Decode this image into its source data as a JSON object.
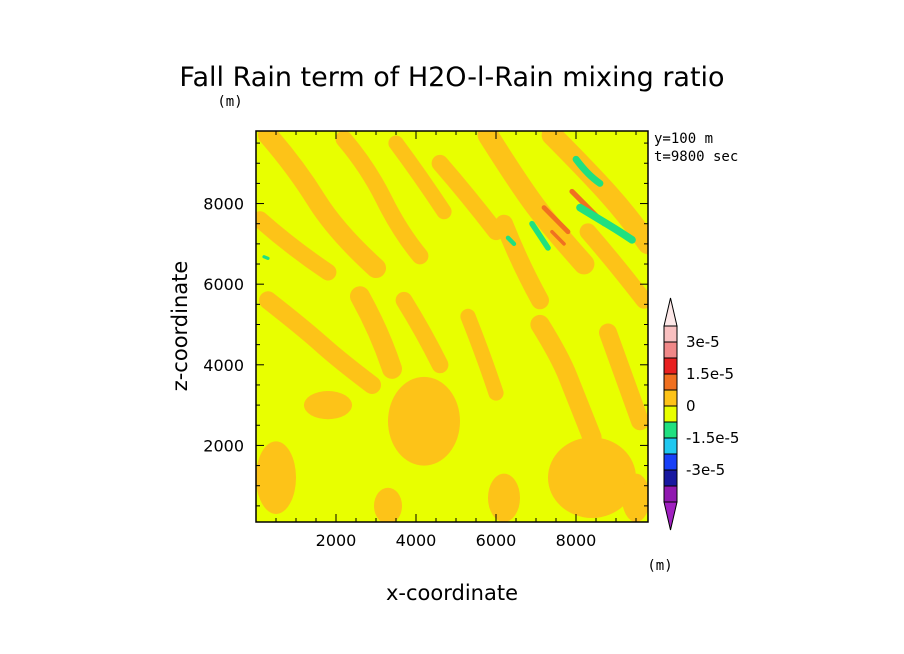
{
  "chart_data": {
    "type": "heatmap",
    "title": "Fall Rain term of H2O-l-Rain mixing ratio",
    "subtitle": "(m)",
    "xlabel": "x-coordinate",
    "ylabel": "z-coordinate",
    "xlim": [
      0,
      9800
    ],
    "ylim": [
      100,
      9800
    ],
    "x_ticks": [
      "2000",
      "4000",
      "6000",
      "8000"
    ],
    "y_ticks": [
      "2000",
      "4000",
      "6000",
      "8000"
    ],
    "annotations": [
      "y=100 m",
      "t=9800 sec"
    ],
    "colorbar": {
      "unit": "(m)",
      "tick_labels": [
        "3e-5",
        "1.5e-5",
        "0",
        "-1.5e-5",
        "-3e-5"
      ],
      "tick_values": [
        3e-05,
        1.5e-05,
        0,
        -1.5e-05,
        -3e-05
      ],
      "levels": [
        {
          "from": 3e-05,
          "to": 3.75e-05,
          "color": "#f9c0c0"
        },
        {
          "from": 2.25e-05,
          "to": 3e-05,
          "color": "#f08888"
        },
        {
          "from": 1.5e-05,
          "to": 2.25e-05,
          "color": "#e82020"
        },
        {
          "from": 7.5e-06,
          "to": 1.5e-05,
          "color": "#f07020"
        },
        {
          "from": 0,
          "to": 7.5e-06,
          "color": "#fdc318"
        },
        {
          "from": -7.5e-06,
          "to": 0,
          "color": "#e8ff00"
        },
        {
          "from": -1.5e-05,
          "to": -7.5e-06,
          "color": "#20e080"
        },
        {
          "from": -2.25e-05,
          "to": -1.5e-05,
          "color": "#20c8f0"
        },
        {
          "from": -3e-05,
          "to": -2.25e-05,
          "color": "#1840f8"
        },
        {
          "from": -3.75e-05,
          "to": -3e-05,
          "color": "#1818a0"
        },
        {
          "from": -4.5e-05,
          "to": -3.75e-05,
          "color": "#9018b0"
        }
      ],
      "top_extend_color": "#fde8e8",
      "bottom_extend_color": "#a020c0"
    },
    "background_color": "#e8ff00",
    "features": [
      {
        "level": "0.0 to 0.75e-5",
        "color": "#fdc318",
        "shape": "streak",
        "points": [
          [
            300,
            9700
          ],
          [
            1000,
            8900
          ],
          [
            2000,
            7300
          ],
          [
            3000,
            6400
          ]
        ],
        "width": 500
      },
      {
        "level": "0.0 to 0.75e-5",
        "color": "#fdc318",
        "shape": "streak",
        "points": [
          [
            2200,
            9600
          ],
          [
            2800,
            8900
          ],
          [
            3600,
            7300
          ],
          [
            4100,
            6700
          ]
        ],
        "width": 420
      },
      {
        "level": "0.0 to 0.75e-5",
        "color": "#fdc318",
        "shape": "streak",
        "points": [
          [
            3500,
            9500
          ],
          [
            4100,
            8700
          ],
          [
            4700,
            7800
          ]
        ],
        "width": 380
      },
      {
        "level": "0.0 to 0.75e-5",
        "color": "#fdc318",
        "shape": "streak",
        "points": [
          [
            4600,
            9000
          ],
          [
            5300,
            8200
          ],
          [
            6000,
            7300
          ]
        ],
        "width": 420
      },
      {
        "level": "0.0 to 0.75e-5",
        "color": "#fdc318",
        "shape": "streak",
        "points": [
          [
            5800,
            9700
          ],
          [
            6500,
            8600
          ],
          [
            7300,
            7500
          ],
          [
            8200,
            6500
          ]
        ],
        "width": 520
      },
      {
        "level": "0.0 to 0.75e-5",
        "color": "#fdc318",
        "shape": "streak",
        "points": [
          [
            6200,
            7500
          ],
          [
            6600,
            6500
          ],
          [
            7100,
            5600
          ]
        ],
        "width": 450
      },
      {
        "level": "0.0 to 0.75e-5",
        "color": "#fdc318",
        "shape": "streak",
        "points": [
          [
            7400,
            9700
          ],
          [
            8300,
            8800
          ],
          [
            9300,
            7700
          ],
          [
            9800,
            7000
          ]
        ],
        "width": 520
      },
      {
        "level": "0.0 to 0.75e-5",
        "color": "#fdc318",
        "shape": "streak",
        "points": [
          [
            8300,
            7300
          ],
          [
            9000,
            6500
          ],
          [
            9700,
            5600
          ]
        ],
        "width": 420
      },
      {
        "level": "0.0 to 0.75e-5",
        "color": "#fdc318",
        "shape": "streak",
        "points": [
          [
            100,
            7600
          ],
          [
            900,
            6900
          ],
          [
            1800,
            6300
          ]
        ],
        "width": 420
      },
      {
        "level": "0.0 to 0.75e-5",
        "color": "#fdc318",
        "shape": "streak",
        "points": [
          [
            300,
            5600
          ],
          [
            1200,
            4900
          ],
          [
            2100,
            4100
          ],
          [
            2900,
            3500
          ]
        ],
        "width": 450
      },
      {
        "level": "0.0 to 0.75e-5",
        "color": "#fdc318",
        "shape": "streak",
        "points": [
          [
            2600,
            5700
          ],
          [
            3100,
            4800
          ],
          [
            3400,
            3900
          ]
        ],
        "width": 500
      },
      {
        "level": "0.0 to 0.75e-5",
        "color": "#fdc318",
        "shape": "streak",
        "points": [
          [
            3700,
            5600
          ],
          [
            4200,
            4800
          ],
          [
            4600,
            4000
          ]
        ],
        "width": 420
      },
      {
        "level": "0.0 to 0.75e-5",
        "color": "#fdc318",
        "shape": "streak",
        "points": [
          [
            5300,
            5200
          ],
          [
            5700,
            4200
          ],
          [
            6000,
            3300
          ]
        ],
        "width": 380
      },
      {
        "level": "0.0 to 0.75e-5",
        "color": "#fdc318",
        "shape": "streak",
        "points": [
          [
            7100,
            5000
          ],
          [
            7600,
            4200
          ],
          [
            8000,
            3200
          ],
          [
            8400,
            2200
          ]
        ],
        "width": 480
      },
      {
        "level": "0.0 to 0.75e-5",
        "color": "#fdc318",
        "shape": "streak",
        "points": [
          [
            8800,
            4800
          ],
          [
            9200,
            3700
          ],
          [
            9600,
            2600
          ]
        ],
        "width": 450
      },
      {
        "level": "0.0 to 0.75e-5",
        "color": "#fdc318",
        "shape": "blob",
        "center": [
          4200,
          2600
        ],
        "radii": [
          900,
          1100
        ]
      },
      {
        "level": "0.0 to 0.75e-5",
        "color": "#fdc318",
        "shape": "blob",
        "center": [
          500,
          1200
        ],
        "radii": [
          500,
          900
        ]
      },
      {
        "level": "0.0 to 0.75e-5",
        "color": "#fdc318",
        "shape": "blob",
        "center": [
          1800,
          3000
        ],
        "radii": [
          600,
          350
        ]
      },
      {
        "level": "0.0 to 0.75e-5",
        "color": "#fdc318",
        "shape": "blob",
        "center": [
          3300,
          500
        ],
        "radii": [
          350,
          450
        ]
      },
      {
        "level": "0.0 to 0.75e-5",
        "color": "#fdc318",
        "shape": "blob",
        "center": [
          6200,
          700
        ],
        "radii": [
          400,
          600
        ]
      },
      {
        "level": "0.0 to 0.75e-5",
        "color": "#fdc318",
        "shape": "blob",
        "center": [
          8400,
          1200
        ],
        "radii": [
          1100,
          1000
        ]
      },
      {
        "level": "0.0 to 0.75e-5",
        "color": "#fdc318",
        "shape": "blob",
        "center": [
          9500,
          700
        ],
        "radii": [
          350,
          600
        ]
      },
      {
        "level": "0.75e-5 to 1.5e-5",
        "color": "#f07020",
        "shape": "streak",
        "points": [
          [
            7200,
            7900
          ],
          [
            7500,
            7600
          ],
          [
            7800,
            7300
          ]
        ],
        "width": 120
      },
      {
        "level": "0.75e-5 to 1.5e-5",
        "color": "#f07020",
        "shape": "streak",
        "points": [
          [
            7900,
            8300
          ],
          [
            8300,
            7900
          ],
          [
            8700,
            7500
          ]
        ],
        "width": 130
      },
      {
        "level": "0.75e-5 to 1.5e-5",
        "color": "#f07020",
        "shape": "streak",
        "points": [
          [
            7400,
            7300
          ],
          [
            7700,
            7000
          ]
        ],
        "width": 90
      },
      {
        "level": "-1.5e-5 to -0.75e-5",
        "color": "#20e080",
        "shape": "streak",
        "points": [
          [
            8000,
            9100
          ],
          [
            8300,
            8700
          ],
          [
            8600,
            8500
          ]
        ],
        "width": 170
      },
      {
        "level": "-1.5e-5 to -0.75e-5",
        "color": "#20e080",
        "shape": "streak",
        "points": [
          [
            8100,
            7900
          ],
          [
            8600,
            7600
          ],
          [
            9100,
            7300
          ],
          [
            9400,
            7100
          ]
        ],
        "width": 190
      },
      {
        "level": "-1.5e-5 to -0.75e-5",
        "color": "#20e080",
        "shape": "streak",
        "points": [
          [
            6900,
            7500
          ],
          [
            7100,
            7200
          ],
          [
            7300,
            6900
          ]
        ],
        "width": 140
      },
      {
        "level": "-1.5e-5 to -0.75e-5",
        "color": "#20e080",
        "shape": "streak",
        "points": [
          [
            6300,
            7150
          ],
          [
            6450,
            7000
          ]
        ],
        "width": 110
      },
      {
        "level": "-1.5e-5 to -0.75e-5",
        "color": "#20e080",
        "shape": "streak",
        "points": [
          [
            200,
            6680
          ],
          [
            300,
            6640
          ]
        ],
        "width": 80
      }
    ]
  }
}
